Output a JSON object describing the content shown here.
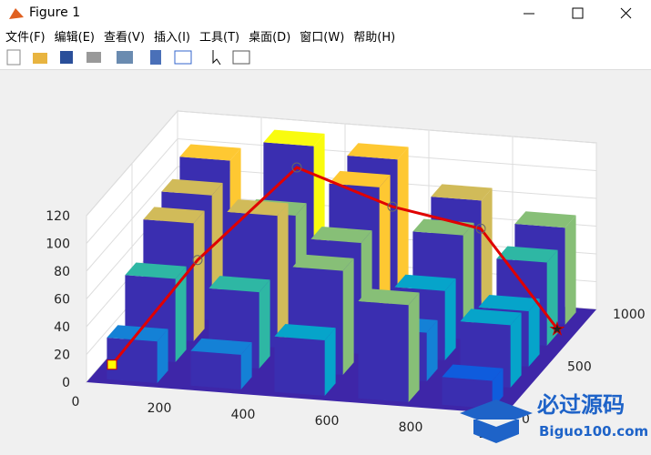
{
  "window": {
    "title": "Figure 1",
    "menu": [
      "文件(F)",
      "编辑(E)",
      "查看(V)",
      "插入(I)",
      "工具(T)",
      "桌面(D)",
      "窗口(W)",
      "帮助(H)"
    ]
  },
  "watermark": {
    "title": "必过源码",
    "subtitle": "Biguo100.com"
  },
  "chart_data": {
    "type": "bar3",
    "bar_x": [
      100,
      300,
      500,
      700,
      900
    ],
    "bar_y": [
      100,
      300,
      500,
      700,
      900
    ],
    "heights": [
      [
        30,
        25,
        40,
        70,
        20
      ],
      [
        60,
        55,
        75,
        35,
        45
      ],
      [
        85,
        95,
        80,
        50,
        40
      ],
      [
        90,
        80,
        105,
        75,
        60
      ],
      [
        100,
        115,
        110,
        85,
        70
      ]
    ],
    "colormap": [
      "#352a87",
      "#0f5cdd",
      "#1481d6",
      "#06a4ca",
      "#2eb7a4",
      "#87bf77",
      "#d1bb59",
      "#fec832",
      "#f9fb0e"
    ],
    "floor_color": "#3e26a8",
    "face_color": "#3a2eb0",
    "path": {
      "color": "#e00000",
      "x": [
        50,
        200,
        350,
        600,
        800,
        950
      ],
      "y": [
        50,
        300,
        700,
        600,
        650,
        800
      ],
      "z": [
        10,
        70,
        110,
        95,
        80,
        0
      ]
    },
    "xlim": [
      0,
      1000
    ],
    "ylim": [
      0,
      1000
    ],
    "zlim": [
      0,
      120
    ],
    "xticks": [
      0,
      200,
      400,
      600,
      800,
      1000
    ],
    "yticks": [
      0,
      500,
      1000
    ],
    "zticks": [
      0,
      20,
      40,
      60,
      80,
      100,
      120
    ],
    "grid": true
  }
}
